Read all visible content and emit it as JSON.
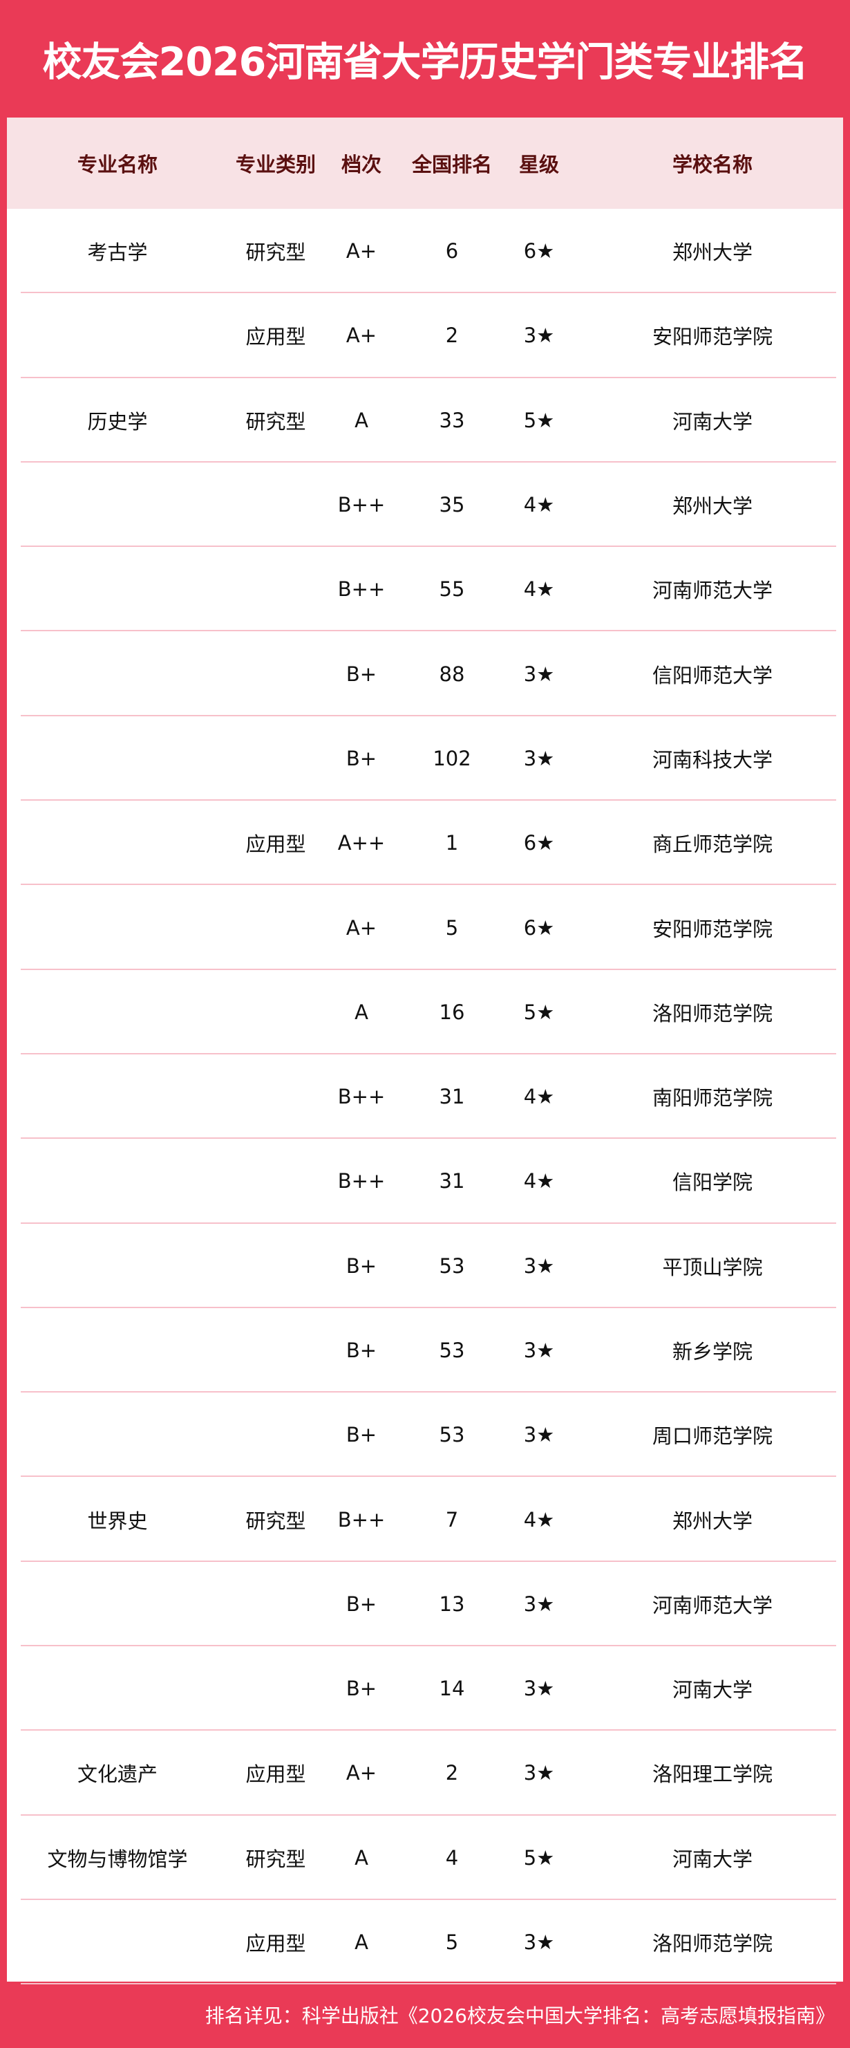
{
  "title": "校友会2026河南省大学历史学门类专业排名",
  "headers": [
    "专业名称",
    "专业类别",
    "档次",
    "全国排名",
    "星级",
    "学校名称"
  ],
  "rows": [
    [
      "考古学",
      "研究型",
      "A+",
      "6",
      "6★",
      "郑州大学"
    ],
    [
      "",
      "应用型",
      "A+",
      "2",
      "3★",
      "安阳师范学院"
    ],
    [
      "历史学",
      "研究型",
      "A",
      "33",
      "5★",
      "河南大学"
    ],
    [
      "",
      "",
      "B++",
      "35",
      "4★",
      "郑州大学"
    ],
    [
      "",
      "",
      "B++",
      "55",
      "4★",
      "河南师范大学"
    ],
    [
      "",
      "",
      "B+",
      "88",
      "3★",
      "信阳师范大学"
    ],
    [
      "",
      "",
      "B+",
      "102",
      "3★",
      "河南科技大学"
    ],
    [
      "",
      "应用型",
      "A++",
      "1",
      "6★",
      "商丘师范学院"
    ],
    [
      "",
      "",
      "A+",
      "5",
      "6★",
      "安阳师范学院"
    ],
    [
      "",
      "",
      "A",
      "16",
      "5★",
      "洛阳师范学院"
    ],
    [
      "",
      "",
      "B++",
      "31",
      "4★",
      "南阳师范学院"
    ],
    [
      "",
      "",
      "B++",
      "31",
      "4★",
      "信阳学院"
    ],
    [
      "",
      "",
      "B+",
      "53",
      "3★",
      "平顶山学院"
    ],
    [
      "",
      "",
      "B+",
      "53",
      "3★",
      "新乡学院"
    ],
    [
      "",
      "",
      "B+",
      "53",
      "3★",
      "周口师范学院"
    ],
    [
      "世界史",
      "研究型",
      "B++",
      "7",
      "4★",
      "郑州大学"
    ],
    [
      "",
      "",
      "B+",
      "13",
      "3★",
      "河南师范大学"
    ],
    [
      "",
      "",
      "B+",
      "14",
      "3★",
      "河南大学"
    ],
    [
      "文化遗产",
      "应用型",
      "A+",
      "2",
      "3★",
      "洛阳理工学院"
    ],
    [
      "文物与博物馆学",
      "研究型",
      "A",
      "4",
      "5★",
      "河南大学"
    ],
    [
      "",
      "应用型",
      "A",
      "5",
      "3★",
      "洛阳师范学院"
    ]
  ],
  "footer": "排名详见：科学出版社《2026校友会中国大学排名：高考志愿填报指南》",
  "colors": {
    "brand_red": "#ea3a56",
    "header_bg": "#f8e2e5",
    "header_text": "#5a1010"
  }
}
